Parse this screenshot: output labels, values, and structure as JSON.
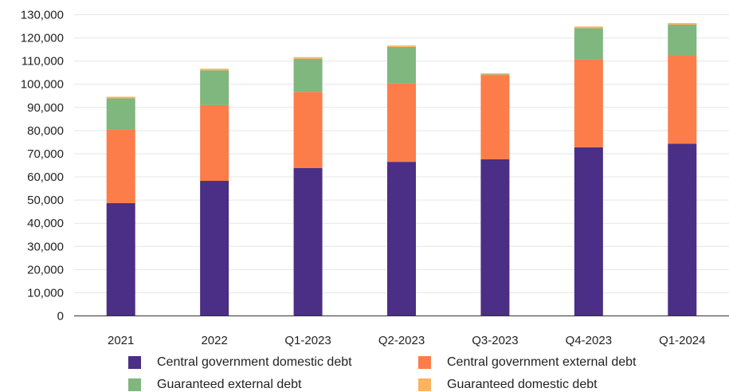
{
  "chart_data": {
    "type": "bar",
    "stacked": true,
    "categories": [
      "2021",
      "2022",
      "Q1-2023",
      "Q2-2023",
      "Q3-2023",
      "Q4-2023",
      "Q1-2024"
    ],
    "series": [
      {
        "name": "Central government domestic debt",
        "color": "#4b2e85",
        "values": [
          48700,
          58300,
          63800,
          66500,
          67600,
          72800,
          74300
        ]
      },
      {
        "name": "Central government external debt",
        "color": "#fc7d49",
        "values": [
          31800,
          32700,
          32900,
          33800,
          36300,
          37800,
          38000
        ]
      },
      {
        "name": "Guaranteed external debt",
        "color": "#7fb77e",
        "values": [
          13400,
          15000,
          14300,
          15800,
          300,
          13600,
          13400
        ]
      },
      {
        "name": "Guaranteed domestic debt",
        "color": "#fcb35b",
        "values": [
          700,
          700,
          700,
          600,
          500,
          700,
          700
        ]
      }
    ],
    "ylim": [
      0,
      130000
    ],
    "yticks": [
      "0",
      "10,000",
      "20,000",
      "30,000",
      "40,000",
      "50,000",
      "60,000",
      "70,000",
      "80,000",
      "90,000",
      "100,000",
      "110,000",
      "120,000",
      "130,000"
    ],
    "grid": true,
    "legend_position": "bottom"
  }
}
